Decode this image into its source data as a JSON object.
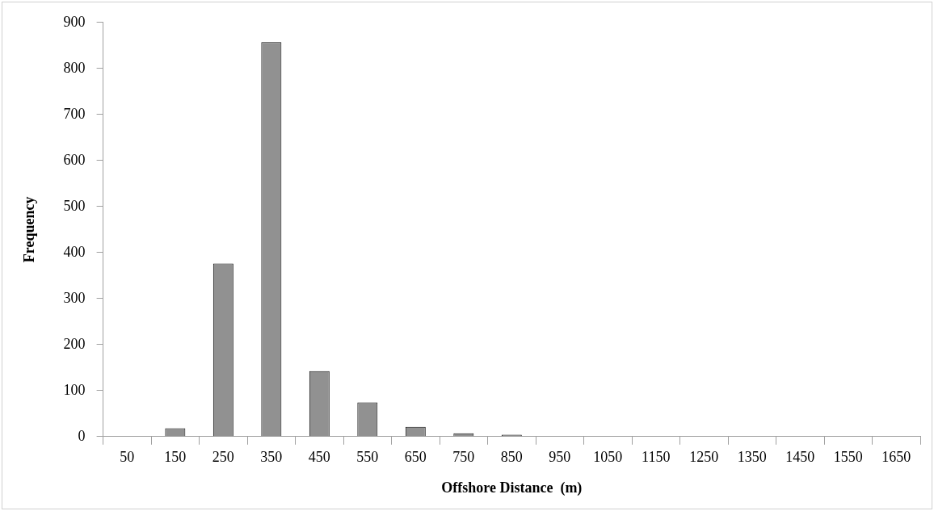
{
  "chart_data": {
    "type": "bar",
    "xlabel": "Offshore Distance  (m)",
    "ylabel": "Frequency",
    "categories": [
      "50",
      "150",
      "250",
      "350",
      "450",
      "550",
      "650",
      "750",
      "850",
      "950",
      "1050",
      "1150",
      "1250",
      "1350",
      "1450",
      "1550",
      "1650"
    ],
    "values": [
      0,
      18,
      376,
      857,
      142,
      74,
      21,
      7,
      4,
      1,
      0,
      0,
      0,
      0,
      0,
      1,
      0
    ],
    "color": "#919191",
    "ylim": [
      0,
      900
    ],
    "yticks": [
      0,
      100,
      200,
      300,
      400,
      500,
      600,
      700,
      800,
      900
    ],
    "grid": false,
    "legend": false
  }
}
